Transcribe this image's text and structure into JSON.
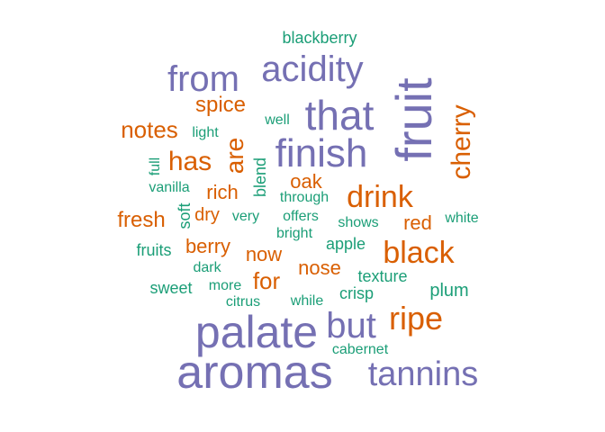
{
  "colors": {
    "purple": "#7570b3",
    "orange": "#d95f02",
    "green": "#1b9e77"
  },
  "words": [
    {
      "text": "aromas",
      "color": "purple"
    },
    {
      "text": "palate",
      "color": "purple"
    },
    {
      "text": "fruit",
      "color": "purple"
    },
    {
      "text": "that",
      "color": "purple"
    },
    {
      "text": "finish",
      "color": "purple"
    },
    {
      "text": "acidity",
      "color": "purple"
    },
    {
      "text": "from",
      "color": "purple"
    },
    {
      "text": "but",
      "color": "purple"
    },
    {
      "text": "tannins",
      "color": "purple"
    },
    {
      "text": "black",
      "color": "orange"
    },
    {
      "text": "ripe",
      "color": "orange"
    },
    {
      "text": "drink",
      "color": "orange"
    },
    {
      "text": "cherry",
      "color": "orange"
    },
    {
      "text": "has",
      "color": "orange"
    },
    {
      "text": "are",
      "color": "orange"
    },
    {
      "text": "notes",
      "color": "orange"
    },
    {
      "text": "spice",
      "color": "orange"
    },
    {
      "text": "for",
      "color": "orange"
    },
    {
      "text": "fresh",
      "color": "orange"
    },
    {
      "text": "rich",
      "color": "orange"
    },
    {
      "text": "oak",
      "color": "orange"
    },
    {
      "text": "red",
      "color": "orange"
    },
    {
      "text": "nose",
      "color": "orange"
    },
    {
      "text": "berry",
      "color": "orange"
    },
    {
      "text": "now",
      "color": "orange"
    },
    {
      "text": "dry",
      "color": "orange"
    },
    {
      "text": "blackberry",
      "color": "green"
    },
    {
      "text": "well",
      "color": "green"
    },
    {
      "text": "light",
      "color": "green"
    },
    {
      "text": "full",
      "color": "green"
    },
    {
      "text": "vanilla",
      "color": "green"
    },
    {
      "text": "blend",
      "color": "green"
    },
    {
      "text": "through",
      "color": "green"
    },
    {
      "text": "soft",
      "color": "green"
    },
    {
      "text": "very",
      "color": "green"
    },
    {
      "text": "offers",
      "color": "green"
    },
    {
      "text": "shows",
      "color": "green"
    },
    {
      "text": "white",
      "color": "green"
    },
    {
      "text": "bright",
      "color": "green"
    },
    {
      "text": "fruits",
      "color": "green"
    },
    {
      "text": "apple",
      "color": "green"
    },
    {
      "text": "dark",
      "color": "green"
    },
    {
      "text": "texture",
      "color": "green"
    },
    {
      "text": "sweet",
      "color": "green"
    },
    {
      "text": "more",
      "color": "green"
    },
    {
      "text": "crisp",
      "color": "green"
    },
    {
      "text": "plum",
      "color": "green"
    },
    {
      "text": "citrus",
      "color": "green"
    },
    {
      "text": "while",
      "color": "green"
    },
    {
      "text": "cabernet",
      "color": "green"
    }
  ]
}
